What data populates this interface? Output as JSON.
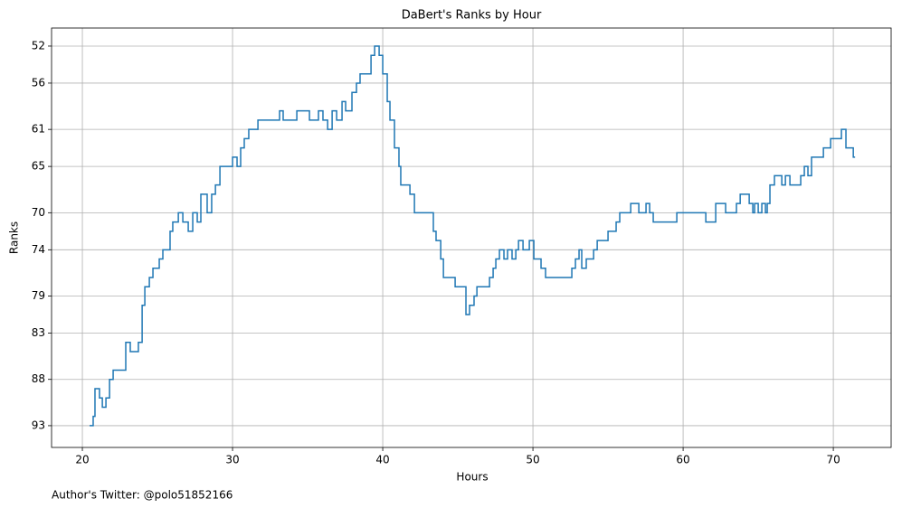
{
  "chart_data": {
    "type": "line",
    "title": "DaBert's Ranks by Hour",
    "x_label": "Hours",
    "y_label": "Ranks",
    "footer": "Author's Twitter: @polo51852166",
    "step": true,
    "invert_y": true,
    "grid": true,
    "x": [
      20.48,
      20.72,
      20.84,
      21.14,
      21.33,
      21.57,
      21.81,
      22.05,
      22.89,
      23.19,
      23.73,
      23.98,
      24.16,
      24.46,
      24.7,
      25.12,
      25.36,
      25.84,
      26.02,
      26.39,
      26.69,
      27.05,
      27.35,
      27.65,
      27.89,
      28.31,
      28.61,
      28.86,
      29.16,
      30.0,
      30.3,
      30.54,
      30.78,
      31.08,
      31.69,
      33.13,
      33.37,
      34.28,
      35.12,
      35.72,
      36.02,
      36.33,
      36.63,
      36.93,
      37.29,
      37.53,
      37.95,
      38.25,
      38.49,
      39.22,
      39.46,
      39.76,
      40.0,
      40.3,
      40.48,
      40.78,
      41.08,
      41.2,
      41.81,
      42.11,
      43.37,
      43.55,
      43.86,
      44.04,
      44.82,
      45.54,
      45.78,
      46.08,
      46.27,
      47.11,
      47.35,
      47.53,
      47.77,
      48.07,
      48.31,
      48.61,
      48.86,
      49.04,
      49.34,
      49.76,
      50.06,
      50.54,
      50.84,
      52.59,
      52.83,
      53.07,
      53.25,
      53.55,
      54.04,
      54.28,
      55.0,
      55.54,
      55.78,
      56.51,
      57.05,
      57.53,
      57.77,
      58.01,
      59.58,
      61.51,
      62.17,
      62.83,
      63.55,
      63.8,
      64.4,
      64.64,
      64.76,
      65.0,
      65.24,
      65.48,
      65.6,
      65.78,
      66.08,
      66.57,
      66.81,
      67.11,
      67.83,
      68.07,
      68.31,
      68.55,
      69.34,
      69.82,
      70.54,
      70.84,
      71.33,
      71.45
    ],
    "series": [
      {
        "name": "Ranks",
        "color": "#1f77b4",
        "values": [
          93,
          92,
          89,
          90,
          91,
          90,
          88,
          87,
          84,
          85,
          84,
          80,
          78,
          77,
          76,
          75,
          74,
          72,
          71,
          70,
          71,
          72,
          70,
          71,
          68,
          70,
          68,
          67,
          65,
          64,
          65,
          63,
          62,
          61,
          60,
          59,
          60,
          59,
          60,
          59,
          60,
          61,
          59,
          60,
          58,
          59,
          57,
          56,
          55,
          53,
          52,
          53,
          55,
          58,
          60,
          63,
          65,
          67,
          68,
          70,
          72,
          73,
          75,
          77,
          78,
          81,
          80,
          79,
          78,
          77,
          76,
          75,
          74,
          75,
          74,
          75,
          74,
          73,
          74,
          73,
          75,
          76,
          77,
          76,
          75,
          74,
          76,
          75,
          74,
          73,
          72,
          71,
          70,
          69,
          70,
          69,
          70,
          71,
          70,
          71,
          69,
          70,
          69,
          68,
          69,
          70,
          69,
          70,
          69,
          70,
          69,
          67,
          66,
          67,
          66,
          67,
          66,
          65,
          66,
          64,
          63,
          62,
          61,
          63,
          64,
          64
        ]
      }
    ],
    "xlim": [
      17.95,
      73.85
    ],
    "xticks": [
      20,
      30,
      40,
      50,
      60,
      70
    ],
    "ylim": [
      95.35,
      50.05
    ],
    "yticks": [
      52,
      56,
      61,
      65,
      70,
      74,
      79,
      83,
      88,
      93
    ]
  }
}
